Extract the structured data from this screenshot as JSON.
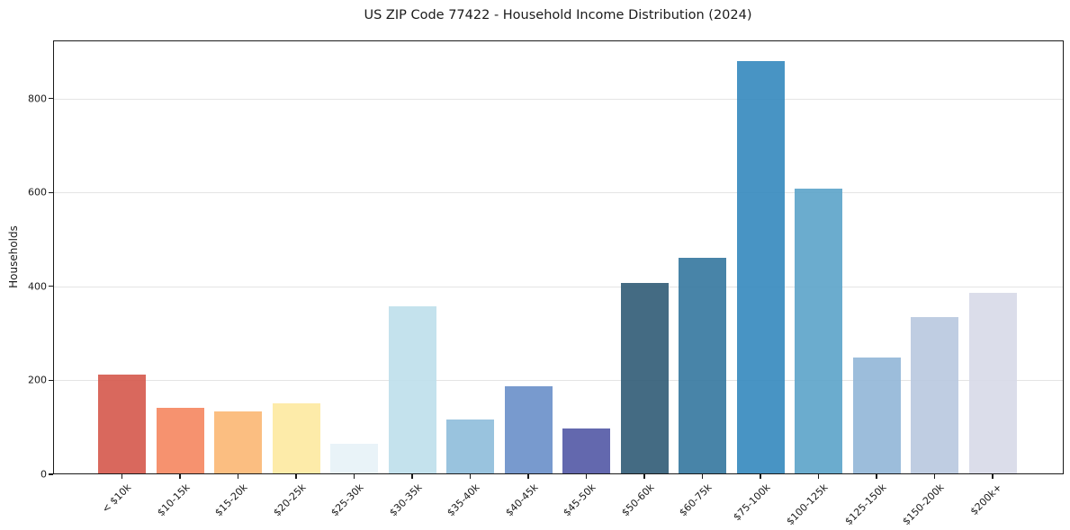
{
  "chart_data": {
    "type": "bar",
    "title": "US ZIP Code 77422 - Household Income Distribution (2024)",
    "xlabel": "",
    "ylabel": "Households",
    "categories": [
      "< $10k",
      "$10-15k",
      "$15-20k",
      "$20-25k",
      "$25-30k",
      "$30-35k",
      "$35-40k",
      "$40-45k",
      "$45-50k",
      "$50-60k",
      "$60-75k",
      "$75-100k",
      "$100-125k",
      "$125-150k",
      "$150-200k",
      "$200k+"
    ],
    "values": [
      213,
      142,
      133,
      151,
      65,
      357,
      117,
      188,
      97,
      407,
      462,
      880,
      608,
      248,
      335,
      386
    ],
    "bar_colors": [
      "#d65c51",
      "#f58a64",
      "#fbb977",
      "#fde9a3",
      "#e7f2f8",
      "#c0e0ec",
      "#91bedb",
      "#6e92ca",
      "#575ca8",
      "#36607a",
      "#3a7ba1",
      "#3a8cc0",
      "#60a6ca",
      "#94b8d8",
      "#bac9e0",
      "#d8dae8"
    ],
    "ylim": [
      0,
      924
    ],
    "yticks": [
      0,
      200,
      400,
      600,
      800
    ],
    "grid": "horizontal-only",
    "gridline_color": "#e4e4e4",
    "legend": "none",
    "x_tick_rotation_deg": 45,
    "axis_color": "#1a1a1a",
    "background_color": "#ffffff"
  }
}
